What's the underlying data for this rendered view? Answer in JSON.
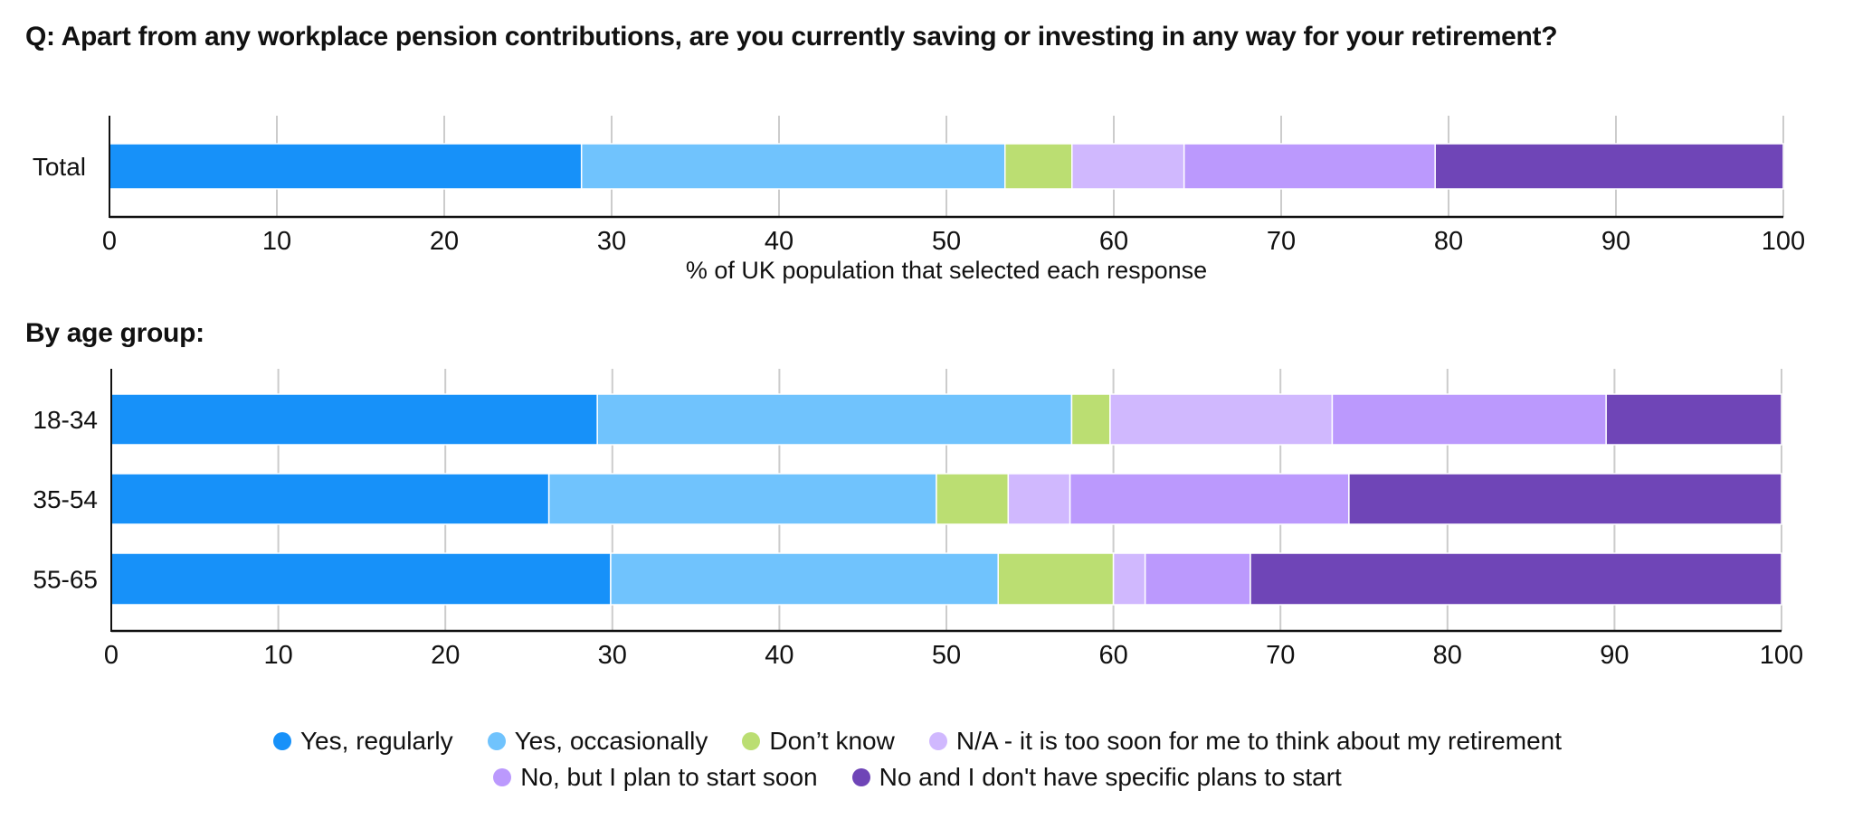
{
  "title": "Q: Apart from any workplace pension contributions, are you currently saving or investing in any way for your retirement?",
  "subheading": "By age group:",
  "colors": {
    "Yes, regularly": "#1791F9",
    "Yes, occasionally": "#70C3FD",
    "Don’t know": "#BBDE72",
    "N/A - it is too soon for me to think about my retirement": "#D0B8FE",
    "No, but I plan to start soon": "#BB99FD",
    "No and I don't have specific plans to start": "#6F45B7"
  },
  "legend": {
    "row1": [
      "Yes, regularly",
      "Yes, occasionally",
      "Don’t know",
      "N/A - it is too soon for me to think about my retirement"
    ],
    "row2": [
      "No, but I plan to start soon",
      "No and I don't have specific plans to start"
    ]
  },
  "chart_data": [
    {
      "type": "bar",
      "orientation": "horizontal",
      "stacked": true,
      "title": "",
      "xlabel": "% of UK population that selected each response",
      "ylabel": "",
      "xlim": [
        0,
        100
      ],
      "xticks": [
        0,
        10,
        20,
        30,
        40,
        50,
        60,
        70,
        80,
        90,
        100
      ],
      "grid": true,
      "categories": [
        "Total"
      ],
      "series": [
        {
          "name": "Yes, regularly",
          "values": [
            28.2
          ]
        },
        {
          "name": "Yes, occasionally",
          "values": [
            25.3
          ]
        },
        {
          "name": "Don’t know",
          "values": [
            4.0
          ]
        },
        {
          "name": "N/A - it is too soon for me to think about my retirement",
          "values": [
            6.7
          ]
        },
        {
          "name": "No, but I plan to start soon",
          "values": [
            15.0
          ]
        },
        {
          "name": "No and I don't have specific plans to start",
          "values": [
            20.8
          ]
        }
      ]
    },
    {
      "type": "bar",
      "orientation": "horizontal",
      "stacked": true,
      "title": "By age group:",
      "xlabel": "",
      "ylabel": "",
      "xlim": [
        0,
        100
      ],
      "xticks": [
        0,
        10,
        20,
        30,
        40,
        50,
        60,
        70,
        80,
        90,
        100
      ],
      "grid": true,
      "legend_position": "bottom-center",
      "categories": [
        "18-34",
        "35-54",
        "55-65"
      ],
      "series": [
        {
          "name": "Yes, regularly",
          "values": [
            29.1,
            26.2,
            29.9
          ]
        },
        {
          "name": "Yes, occasionally",
          "values": [
            28.4,
            23.2,
            23.2
          ]
        },
        {
          "name": "Don’t know",
          "values": [
            2.3,
            4.3,
            6.9
          ]
        },
        {
          "name": "N/A - it is too soon for me to think about my retirement",
          "values": [
            13.3,
            3.7,
            1.9
          ]
        },
        {
          "name": "No, but I plan to start soon",
          "values": [
            16.4,
            16.7,
            6.3
          ]
        },
        {
          "name": "No and I don't have specific plans to start",
          "values": [
            10.5,
            25.9,
            31.8
          ]
        }
      ]
    }
  ]
}
